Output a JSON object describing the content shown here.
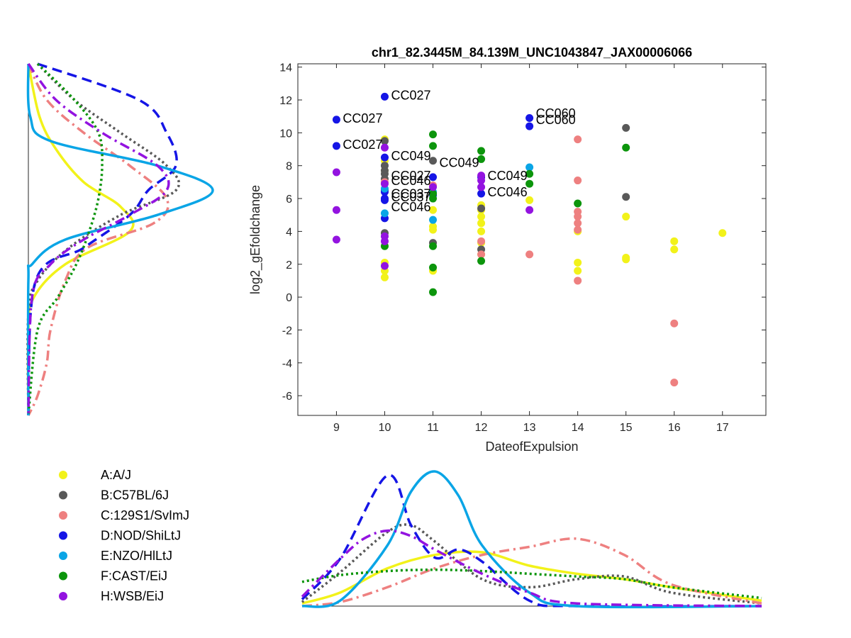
{
  "chart_data": {
    "type": "scatter",
    "title": "chr1_82.3445M_84.139M_UNC1043847_JAX00006066",
    "xlabel": "DateofExpulsion",
    "ylabel": "log2_gEfoldchange",
    "xlim": [
      8.2,
      17.9
    ],
    "ylim": [
      -7.2,
      14.2
    ],
    "xticks": [
      9,
      10,
      11,
      12,
      13,
      14,
      15,
      16,
      17
    ],
    "yticks": [
      -6,
      -4,
      -2,
      0,
      2,
      4,
      6,
      8,
      10,
      12,
      14
    ],
    "legend_placement": "bottom-left, outside",
    "series": [
      {
        "name": "A:A/J",
        "color": "#f2f21a",
        "line_style": "solid",
        "points": [
          [
            10,
            9.6
          ],
          [
            10,
            8.3
          ],
          [
            10,
            7.7
          ],
          [
            10,
            2.1
          ],
          [
            10,
            1.6
          ],
          [
            10,
            1.2
          ],
          [
            11,
            5.3
          ],
          [
            11,
            4.3
          ],
          [
            11,
            4.1
          ],
          [
            11,
            1.6
          ],
          [
            12,
            5.6
          ],
          [
            12,
            5.3
          ],
          [
            12,
            4.9
          ],
          [
            12,
            4.5
          ],
          [
            12,
            4.0
          ],
          [
            12,
            3.3
          ],
          [
            12,
            2.6
          ],
          [
            13,
            5.9
          ],
          [
            14,
            4.0
          ],
          [
            14,
            2.1
          ],
          [
            14,
            1.6
          ],
          [
            15,
            4.9
          ],
          [
            15,
            2.4
          ],
          [
            15,
            2.3
          ],
          [
            16,
            3.4
          ],
          [
            16,
            2.9
          ],
          [
            17,
            3.9
          ]
        ]
      },
      {
        "name": "B:C57BL/6J",
        "color": "#595959",
        "line_style": "dotted",
        "points": [
          [
            10,
            9.5
          ],
          [
            10,
            8.0
          ],
          [
            10,
            7.7
          ],
          [
            10,
            7.5
          ],
          [
            10,
            7.2
          ],
          [
            10,
            6.5
          ],
          [
            10,
            3.9
          ],
          [
            11,
            8.3
          ],
          [
            11,
            3.3
          ],
          [
            12,
            5.4
          ],
          [
            12,
            2.9
          ],
          [
            15,
            10.3
          ],
          [
            15,
            6.1
          ]
        ]
      },
      {
        "name": "C:129S1/SvImJ",
        "color": "#ee8080",
        "line_style": "dashdot",
        "points": [
          [
            10,
            7.0
          ],
          [
            11,
            6.8
          ],
          [
            12,
            3.4
          ],
          [
            12,
            2.6
          ],
          [
            13,
            2.6
          ],
          [
            14,
            9.6
          ],
          [
            14,
            7.1
          ],
          [
            14,
            5.2
          ],
          [
            14,
            4.9
          ],
          [
            14,
            4.5
          ],
          [
            14,
            4.1
          ],
          [
            14,
            1.0
          ],
          [
            16,
            -1.6
          ],
          [
            16,
            -5.2
          ]
        ]
      },
      {
        "name": "D:NOD/ShiLtJ",
        "color": "#1515e6",
        "line_style": "dashed",
        "points": [
          [
            9,
            10.8
          ],
          [
            9,
            9.2
          ],
          [
            10,
            12.2
          ],
          [
            10,
            8.5
          ],
          [
            10,
            6.4
          ],
          [
            10,
            6.0
          ],
          [
            10,
            5.9
          ],
          [
            10,
            4.8
          ],
          [
            11,
            7.3
          ],
          [
            11,
            6.2
          ],
          [
            12,
            7.3
          ],
          [
            12,
            6.3
          ],
          [
            13,
            10.9
          ],
          [
            13,
            10.4
          ]
        ]
      },
      {
        "name": "E:NZO/HlLtJ",
        "color": "#0aa5e6",
        "line_style": "solid",
        "points": [
          [
            10,
            6.6
          ],
          [
            10,
            5.1
          ],
          [
            11,
            6.4
          ],
          [
            11,
            4.7
          ],
          [
            13,
            7.9
          ]
        ]
      },
      {
        "name": "F:CAST/EiJ",
        "color": "#0c950c",
        "line_style": "dotted",
        "points": [
          [
            10,
            3.1
          ],
          [
            11,
            9.9
          ],
          [
            11,
            9.2
          ],
          [
            11,
            6.3
          ],
          [
            11,
            6.0
          ],
          [
            11,
            3.1
          ],
          [
            11,
            1.8
          ],
          [
            11,
            0.3
          ],
          [
            12,
            8.9
          ],
          [
            12,
            8.4
          ],
          [
            12,
            2.2
          ],
          [
            13,
            7.5
          ],
          [
            13,
            6.9
          ],
          [
            14,
            5.7
          ],
          [
            15,
            9.1
          ]
        ]
      },
      {
        "name": "H:WSB/EiJ",
        "color": "#9313e0",
        "line_style": "dashdot",
        "points": [
          [
            9,
            7.6
          ],
          [
            9,
            5.3
          ],
          [
            9,
            3.5
          ],
          [
            10,
            9.1
          ],
          [
            10,
            6.9
          ],
          [
            10,
            3.7
          ],
          [
            10,
            3.4
          ],
          [
            10,
            1.9
          ],
          [
            11,
            6.7
          ],
          [
            12,
            7.4
          ],
          [
            12,
            7.1
          ],
          [
            12,
            6.7
          ],
          [
            13,
            5.3
          ]
        ]
      }
    ],
    "annotations": [
      {
        "x": 10,
        "y": 12.2,
        "text": "CC027"
      },
      {
        "x": 9,
        "y": 10.8,
        "text": "CC027"
      },
      {
        "x": 9,
        "y": 9.2,
        "text": "CC027"
      },
      {
        "x": 13,
        "y": 11.1,
        "text": "CC060"
      },
      {
        "x": 13,
        "y": 10.7,
        "text": "CC060"
      },
      {
        "x": 10,
        "y": 8.5,
        "text": "CC049"
      },
      {
        "x": 11,
        "y": 8.1,
        "text": "CC049"
      },
      {
        "x": 12,
        "y": 7.3,
        "text": "CC049"
      },
      {
        "x": 10,
        "y": 7.3,
        "text": "CC027"
      },
      {
        "x": 10,
        "y": 7.0,
        "text": "CC046"
      },
      {
        "x": 12,
        "y": 6.3,
        "text": "CC046"
      },
      {
        "x": 10,
        "y": 6.2,
        "text": "CC037"
      },
      {
        "x": 10,
        "y": 6.0,
        "text": "CC037"
      },
      {
        "x": 10,
        "y": 5.4,
        "text": "CC046"
      }
    ],
    "x_densities": [
      {
        "series": "A:A/J",
        "x": [
          8.2,
          9,
          10,
          11,
          12,
          13,
          14,
          15,
          16,
          17.9
        ],
        "density": [
          0.02,
          0.1,
          0.28,
          0.38,
          0.4,
          0.3,
          0.24,
          0.2,
          0.14,
          0.04
        ]
      },
      {
        "series": "B:C57BL/6J",
        "x": [
          8.2,
          9,
          10,
          10.5,
          11,
          12,
          13,
          14,
          15,
          16,
          17.9
        ],
        "density": [
          0.03,
          0.25,
          0.55,
          0.6,
          0.48,
          0.2,
          0.14,
          0.2,
          0.22,
          0.1,
          0.02
        ]
      },
      {
        "series": "C:129S1/SvImJ",
        "x": [
          8.2,
          9,
          10,
          11,
          12,
          13,
          14,
          15,
          16,
          17.9
        ],
        "density": [
          0.0,
          0.03,
          0.14,
          0.28,
          0.38,
          0.44,
          0.5,
          0.38,
          0.16,
          0.02
        ]
      },
      {
        "series": "D:NOD/ShiLtJ",
        "x": [
          8.2,
          9,
          10,
          10.5,
          11,
          11.5,
          12,
          13,
          14,
          17.9
        ],
        "density": [
          0.05,
          0.35,
          0.97,
          0.6,
          0.36,
          0.42,
          0.33,
          0.04,
          0.0,
          0.0
        ]
      },
      {
        "series": "E:NZO/HlLtJ",
        "x": [
          8.2,
          9,
          10,
          10.5,
          11,
          11.5,
          12,
          13,
          14,
          17.9
        ],
        "density": [
          0.0,
          0.04,
          0.45,
          0.85,
          1.0,
          0.82,
          0.45,
          0.1,
          0.0,
          0.0
        ]
      },
      {
        "series": "F:CAST/EiJ",
        "x": [
          8.2,
          9,
          10,
          11,
          12,
          13,
          14,
          15,
          16,
          17.9
        ],
        "density": [
          0.18,
          0.23,
          0.26,
          0.27,
          0.26,
          0.24,
          0.22,
          0.2,
          0.14,
          0.06
        ]
      },
      {
        "series": "H:WSB/EiJ",
        "x": [
          8.2,
          9,
          9.5,
          10,
          10.5,
          11,
          12,
          13,
          14,
          17.9
        ],
        "density": [
          0.07,
          0.35,
          0.5,
          0.56,
          0.52,
          0.42,
          0.24,
          0.1,
          0.02,
          0.0
        ]
      }
    ],
    "y_densities": [
      {
        "series": "A:A/J",
        "y": [
          14.2,
          11,
          9,
          7,
          5.5,
          4,
          2,
          0,
          -2,
          -7.2
        ],
        "density": [
          0.0,
          0.06,
          0.15,
          0.3,
          0.5,
          0.55,
          0.2,
          0.03,
          0.0,
          0.0
        ]
      },
      {
        "series": "B:C57BL/6J",
        "y": [
          14.2,
          12,
          10,
          8,
          6.5,
          5,
          3,
          1,
          -1,
          -7.2
        ],
        "density": [
          0.05,
          0.25,
          0.5,
          0.75,
          0.8,
          0.5,
          0.22,
          0.05,
          0.0,
          0.0
        ]
      },
      {
        "series": "C:129S1/SvImJ",
        "y": [
          14.2,
          12,
          10,
          8,
          6,
          4.5,
          3,
          1,
          -2,
          -4,
          -6,
          -7.2
        ],
        "density": [
          0.0,
          0.1,
          0.3,
          0.55,
          0.75,
          0.68,
          0.32,
          0.2,
          0.12,
          0.1,
          0.05,
          0.0
        ]
      },
      {
        "series": "D:NOD/ShiLtJ",
        "y": [
          14.2,
          12,
          10,
          8,
          6.5,
          5,
          3,
          1,
          -7.2
        ],
        "density": [
          0.05,
          0.6,
          0.75,
          0.8,
          0.65,
          0.55,
          0.3,
          0.04,
          0.0
        ]
      },
      {
        "series": "E:NZO/HlLtJ",
        "y": [
          14.2,
          11,
          9.5,
          8,
          6.5,
          5,
          3.5,
          2,
          1,
          -7.2
        ],
        "density": [
          0.0,
          0.01,
          0.12,
          0.7,
          1.0,
          0.7,
          0.2,
          0.02,
          0.0,
          0.0
        ]
      },
      {
        "series": "F:CAST/EiJ",
        "y": [
          14.2,
          12,
          10,
          8,
          6,
          4,
          2,
          0,
          -2,
          -7.2
        ],
        "density": [
          0.05,
          0.25,
          0.38,
          0.4,
          0.38,
          0.33,
          0.26,
          0.16,
          0.05,
          0.0
        ]
      },
      {
        "series": "H:WSB/EiJ",
        "y": [
          14.2,
          12,
          10,
          8,
          6.5,
          5,
          3.5,
          2,
          0,
          -7.2
        ],
        "density": [
          0.0,
          0.15,
          0.4,
          0.7,
          0.75,
          0.55,
          0.3,
          0.12,
          0.02,
          0.0
        ]
      }
    ]
  }
}
